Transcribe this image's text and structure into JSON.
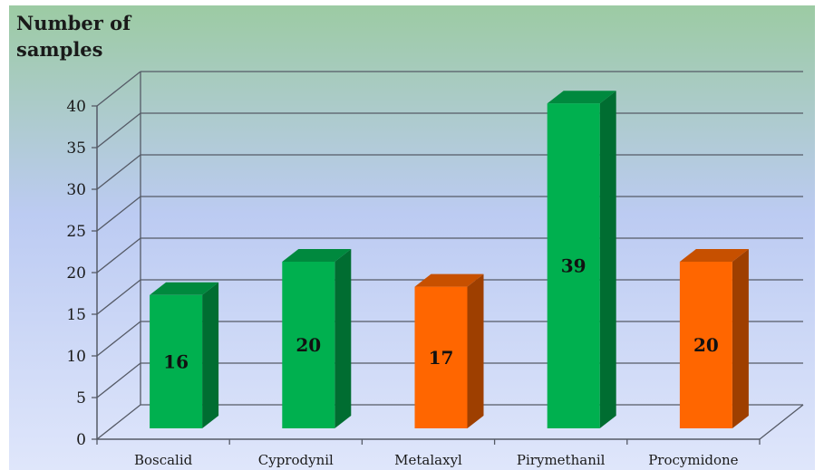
{
  "chart_data": {
    "type": "bar",
    "ylabel_lines": [
      "Number of",
      "samples"
    ],
    "categories": [
      "Boscalid",
      "Cyprodynil",
      "Metalaxyl",
      "Pirymethanil",
      "Procymidone"
    ],
    "values": [
      16,
      20,
      17,
      39,
      20
    ],
    "bar_colors": [
      "#00b04f",
      "#00b04f",
      "#ff6600",
      "#00b04f",
      "#ff6600"
    ],
    "yticks": [
      0,
      5,
      10,
      15,
      20,
      25,
      30,
      35,
      40
    ],
    "ylim": [
      0,
      40
    ],
    "grid": true,
    "legend": false,
    "background": {
      "top": "#9ccba3",
      "middle": "#bccbf2",
      "bottom": "#dfe6fb"
    }
  }
}
